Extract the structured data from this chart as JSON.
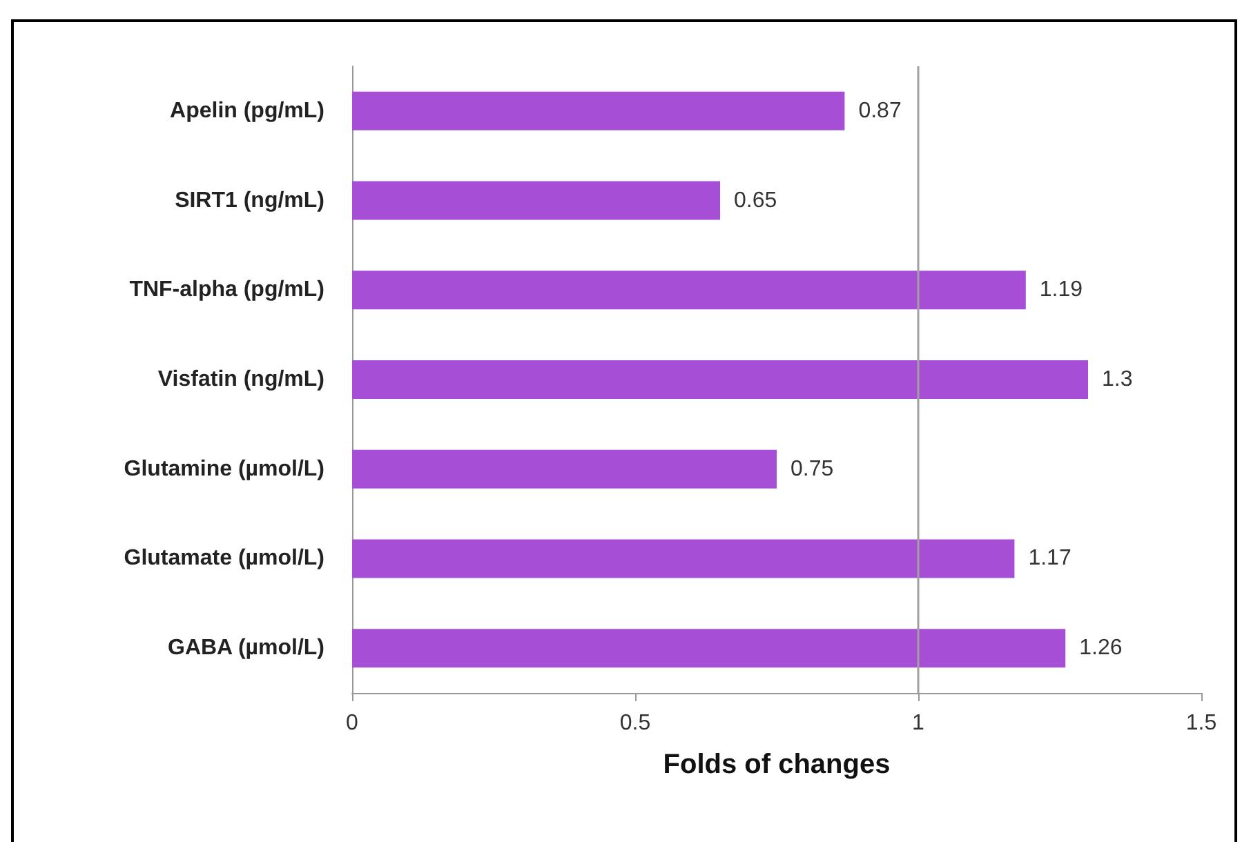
{
  "chart_data": {
    "type": "bar",
    "orientation": "horizontal",
    "xlabel": "Folds of changes",
    "categories": [
      "Apelin (pg/mL)",
      "SIRT1 (ng/mL)",
      "TNF-alpha (pg/mL)",
      "Visfatin (ng/mL)",
      "Glutamine (µmol/L)",
      "Glutamate (µmol/L)",
      "GABA (µmol/L)"
    ],
    "values": [
      0.87,
      0.65,
      1.19,
      1.3,
      0.75,
      1.17,
      1.26
    ],
    "color": "#a64fd6",
    "xlim": [
      0,
      1.5
    ],
    "xticks": [
      0,
      0.5,
      1,
      1.5
    ],
    "ref_lines": [
      {
        "axis": "x",
        "value": 1,
        "color": "#a0a0a0"
      }
    ],
    "data_labels": true
  }
}
